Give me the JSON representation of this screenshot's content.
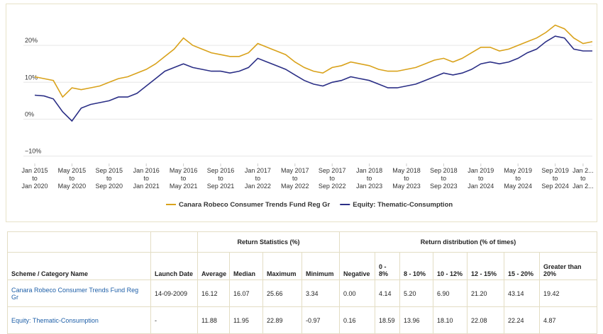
{
  "chart_data": {
    "type": "line",
    "x": [
      0,
      1,
      2,
      3,
      4,
      5,
      6,
      7,
      8,
      9,
      10,
      11,
      12,
      13,
      14,
      15,
      16,
      17,
      18,
      19,
      20,
      21,
      22,
      23,
      24,
      25,
      26,
      27,
      28,
      29,
      30,
      31,
      32,
      33,
      34,
      35,
      36,
      37,
      38,
      39,
      40,
      41,
      42,
      43,
      44,
      45,
      46,
      47,
      48,
      49,
      50,
      51,
      52,
      53,
      54,
      55,
      56,
      57,
      58,
      59,
      60
    ],
    "xlim": [
      0,
      60
    ],
    "xticks": [
      {
        "value": 0,
        "label": [
          "Jan 2015",
          "to",
          "Jan 2020"
        ]
      },
      {
        "value": 4,
        "label": [
          "May 2015",
          "to",
          "May 2020"
        ]
      },
      {
        "value": 8,
        "label": [
          "Sep 2015",
          "to",
          "Sep 2020"
        ]
      },
      {
        "value": 12,
        "label": [
          "Jan 2016",
          "to",
          "Jan 2021"
        ]
      },
      {
        "value": 16,
        "label": [
          "May 2016",
          "to",
          "May 2021"
        ]
      },
      {
        "value": 20,
        "label": [
          "Sep 2016",
          "to",
          "Sep 2021"
        ]
      },
      {
        "value": 24,
        "label": [
          "Jan 2017",
          "to",
          "Jan 2022"
        ]
      },
      {
        "value": 28,
        "label": [
          "May 2017",
          "to",
          "May 2022"
        ]
      },
      {
        "value": 32,
        "label": [
          "Sep 2017",
          "to",
          "Sep 2022"
        ]
      },
      {
        "value": 36,
        "label": [
          "Jan 2018",
          "to",
          "Jan 2023"
        ]
      },
      {
        "value": 40,
        "label": [
          "May 2018",
          "to",
          "May 2023"
        ]
      },
      {
        "value": 44,
        "label": [
          "Sep 2018",
          "to",
          "Sep 2023"
        ]
      },
      {
        "value": 48,
        "label": [
          "Jan 2019",
          "to",
          "Jan 2024"
        ]
      },
      {
        "value": 52,
        "label": [
          "May 2019",
          "to",
          "May 2024"
        ]
      },
      {
        "value": 56,
        "label": [
          "Sep 2019",
          "to",
          "Sep 2024"
        ]
      },
      {
        "value": 59,
        "label": [
          "Jan 2...",
          "to",
          "Jan 2..."
        ]
      }
    ],
    "ylim": [
      -12,
      30
    ],
    "yticks": [
      {
        "value": -10,
        "label": "−10%"
      },
      {
        "value": 0,
        "label": "0%"
      },
      {
        "value": 10,
        "label": "10%"
      },
      {
        "value": 20,
        "label": "20%"
      }
    ],
    "grid": true,
    "series": [
      {
        "name": "Canara Robeco Consumer Trends Fund Reg Gr",
        "color": "#d9a21b",
        "values": [
          11.5,
          11,
          10.5,
          6,
          8.5,
          8,
          8.5,
          9,
          10,
          11,
          11.5,
          12.5,
          13.5,
          15,
          17,
          19,
          22,
          20,
          19,
          18,
          17.5,
          17,
          17,
          18,
          20.5,
          19.5,
          18.5,
          17.5,
          15.5,
          14,
          13,
          12.5,
          14,
          14.5,
          15.5,
          15,
          14.5,
          13.5,
          13,
          13,
          13.5,
          14,
          15,
          16,
          16.5,
          15.5,
          16.5,
          18,
          19.5,
          19.5,
          18.5,
          19,
          20,
          21,
          22,
          23.5,
          25.5,
          24.5,
          22,
          20.5,
          21
        ]
      },
      {
        "name": "Equity: Thematic-Consumption",
        "color": "#2b2f86",
        "values": [
          6.5,
          6.3,
          5.5,
          2,
          -0.5,
          3,
          4,
          4.5,
          5,
          6,
          6,
          7,
          9,
          11,
          13,
          14,
          15,
          14,
          13.5,
          13,
          13,
          12.5,
          13,
          14,
          16.5,
          15.5,
          14.5,
          13.5,
          12,
          10.5,
          9.5,
          9,
          10,
          10.5,
          11.5,
          11,
          10.5,
          9.5,
          8.5,
          8.5,
          9,
          9.5,
          10.5,
          11.5,
          12.5,
          12,
          12.5,
          13.5,
          15,
          15.5,
          15,
          15.5,
          16.5,
          18,
          19,
          21,
          22.5,
          22,
          19,
          18.5,
          18.5
        ]
      }
    ]
  },
  "table": {
    "group_headers": [
      "Return Statistics (%)",
      "Return distribution (% of times)"
    ],
    "columns": [
      "Scheme / Category Name",
      "Launch Date",
      "Average",
      "Median",
      "Maximum",
      "Minimum",
      "Negative",
      "0 - 8%",
      "8 - 10%",
      "10 - 12%",
      "12 - 15%",
      "15 - 20%",
      "Greater than 20%"
    ],
    "rows": [
      [
        "Canara Robeco Consumer Trends Fund Reg Gr",
        "14-09-2009",
        "16.12",
        "16.07",
        "25.66",
        "3.34",
        "0.00",
        "4.14",
        "5.20",
        "6.90",
        "21.20",
        "43.14",
        "19.42"
      ],
      [
        "Equity: Thematic-Consumption",
        "-",
        "11.88",
        "11.95",
        "22.89",
        "-0.97",
        "0.16",
        "18.59",
        "13.96",
        "18.10",
        "22.08",
        "22.24",
        "4.87"
      ]
    ]
  }
}
